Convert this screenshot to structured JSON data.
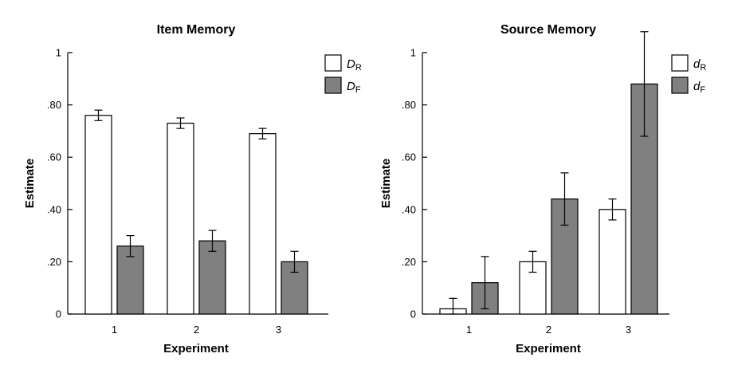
{
  "chart_data": [
    {
      "type": "bar",
      "title": "Item Memory",
      "xlabel": "Experiment",
      "ylabel": "Estimate",
      "categories": [
        "1",
        "2",
        "3"
      ],
      "ylim": [
        0,
        1
      ],
      "yticks": [
        {
          "value": 0,
          "label": "0"
        },
        {
          "value": 0.2,
          "label": ".20"
        },
        {
          "value": 0.4,
          "label": ".40"
        },
        {
          "value": 0.6,
          "label": ".60"
        },
        {
          "value": 0.8,
          "label": ".80"
        },
        {
          "value": 1,
          "label": "1"
        }
      ],
      "legend_position": "top-right",
      "series": [
        {
          "name": "D",
          "subscript": "R",
          "color": "#ffffff",
          "values": [
            0.76,
            0.73,
            0.69
          ],
          "errors": [
            0.02,
            0.02,
            0.02
          ]
        },
        {
          "name": "D",
          "subscript": "F",
          "color": "#808080",
          "values": [
            0.26,
            0.28,
            0.2
          ],
          "errors": [
            0.04,
            0.04,
            0.04
          ]
        }
      ]
    },
    {
      "type": "bar",
      "title": "Source Memory",
      "xlabel": "Experiment",
      "ylabel": "Estimate",
      "categories": [
        "1",
        "2",
        "3"
      ],
      "ylim": [
        0,
        1
      ],
      "yticks": [
        {
          "value": 0,
          "label": "0"
        },
        {
          "value": 0.2,
          "label": ".20"
        },
        {
          "value": 0.4,
          "label": ".40"
        },
        {
          "value": 0.6,
          "label": ".60"
        },
        {
          "value": 0.8,
          "label": ".80"
        },
        {
          "value": 1,
          "label": "1"
        }
      ],
      "legend_position": "top-right",
      "series": [
        {
          "name": "d",
          "subscript": "R",
          "color": "#ffffff",
          "values": [
            0.02,
            0.2,
            0.4
          ],
          "errors": [
            0.04,
            0.04,
            0.04
          ]
        },
        {
          "name": "d",
          "subscript": "F",
          "color": "#808080",
          "values": [
            0.12,
            0.44,
            0.88
          ],
          "errors": [
            0.1,
            0.1,
            0.2
          ]
        }
      ]
    }
  ]
}
